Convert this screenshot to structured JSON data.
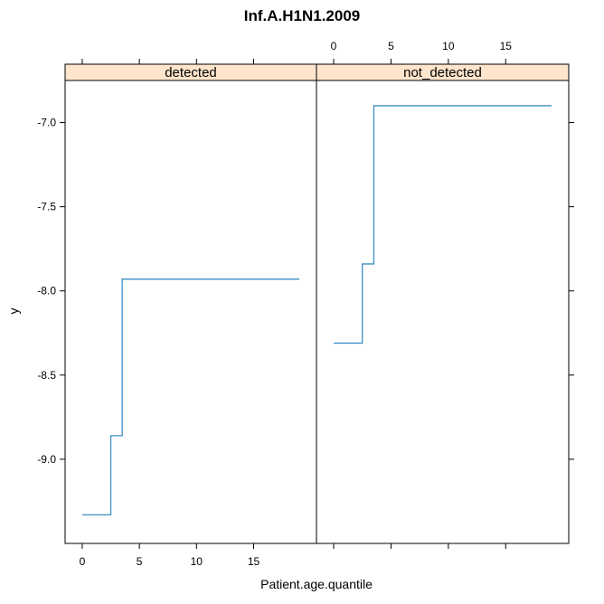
{
  "chart_data": {
    "type": "line",
    "title": "Inf.A.H1N1.2009",
    "xlabel": "Patient.age.quantile",
    "ylabel": "y",
    "xlim": [
      -1.5,
      20.5
    ],
    "ylim": [
      -9.5,
      -6.75
    ],
    "x_ticks": [
      0,
      5,
      10,
      15
    ],
    "x_tick_labels": [
      "0",
      "5",
      "10",
      "15"
    ],
    "y_ticks": [
      -9.0,
      -8.5,
      -8.0,
      -7.5,
      -7.0
    ],
    "y_tick_labels": [
      "-9.0",
      "-8.5",
      "-8.0",
      "-7.5",
      "-7.0"
    ],
    "line_color": "#3b8fc4",
    "strip_color": "#ffe5cc",
    "panels": [
      {
        "strip": "detected",
        "x": [
          0,
          2.5,
          2.5,
          3.5,
          3.5,
          19
        ],
        "y": [
          -9.33,
          -9.33,
          -8.86,
          -8.86,
          -7.93,
          -7.93
        ]
      },
      {
        "strip": "not_detected",
        "x": [
          0,
          2.5,
          2.5,
          3.5,
          3.5,
          19
        ],
        "y": [
          -8.31,
          -8.31,
          -7.84,
          -7.84,
          -6.9,
          -6.9
        ]
      }
    ]
  }
}
